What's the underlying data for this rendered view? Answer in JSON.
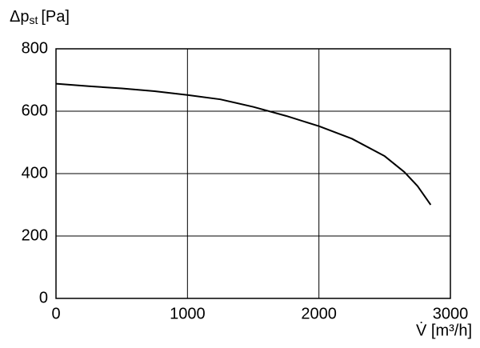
{
  "chart_data": {
    "type": "line",
    "ylabel": {
      "symbol": "Δp",
      "subscript": "st",
      "unit": "[Pa]"
    },
    "xlabel": "V̇ [m³/h]",
    "x": [
      0,
      250,
      500,
      750,
      1000,
      1250,
      1500,
      1750,
      2000,
      2250,
      2500,
      2650,
      2750,
      2850
    ],
    "series": [
      {
        "color": "#000000",
        "values": [
          688,
          680,
          673,
          664,
          652,
          638,
          614,
          585,
          552,
          512,
          456,
          405,
          360,
          300
        ]
      }
    ],
    "xlim": [
      0,
      3000
    ],
    "xticks": [
      0,
      1000,
      2000,
      3000
    ],
    "ylim": [
      0,
      800
    ],
    "yticks": [
      0,
      200,
      400,
      600,
      800
    ],
    "grid": true
  }
}
